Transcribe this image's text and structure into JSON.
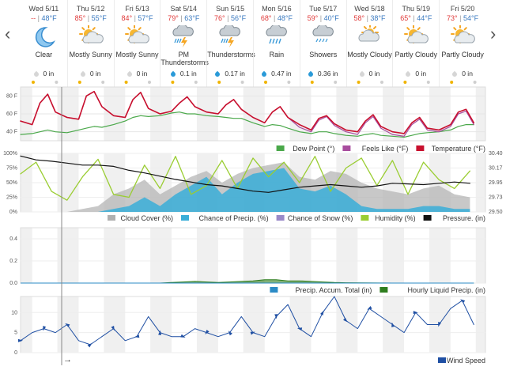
{
  "forecast": {
    "days": [
      {
        "date": "Wed 5/11",
        "hi": "--",
        "lo": "48°F",
        "icon": "moon-icon",
        "condition": "Clear",
        "precip": "0 in",
        "drop": "gray"
      },
      {
        "date": "Thu 5/12",
        "hi": "85°",
        "lo": "55°F",
        "icon": "sun-cloud-icon",
        "condition": "Mostly Sunny",
        "precip": "0 in",
        "drop": "gray"
      },
      {
        "date": "Fri 5/13",
        "hi": "84°",
        "lo": "57°F",
        "icon": "sun-cloud-icon",
        "condition": "Mostly Sunny",
        "precip": "0 in",
        "drop": "gray"
      },
      {
        "date": "Sat 5/14",
        "hi": "79°",
        "lo": "63°F",
        "icon": "thunderstorm-icon",
        "condition": "PM Thunderstorms",
        "precip": "0.1 in",
        "drop": "blue"
      },
      {
        "date": "Sun 5/15",
        "hi": "76°",
        "lo": "56°F",
        "icon": "thunderstorm-icon",
        "condition": "Thunderstorms",
        "precip": "0.17 in",
        "drop": "blue"
      },
      {
        "date": "Mon 5/16",
        "hi": "68°",
        "lo": "48°F",
        "icon": "rain-icon",
        "condition": "Rain",
        "precip": "0.47 in",
        "drop": "blue"
      },
      {
        "date": "Tue 5/17",
        "hi": "59°",
        "lo": "40°F",
        "icon": "showers-icon",
        "condition": "Showers",
        "precip": "0.36 in",
        "drop": "blue"
      },
      {
        "date": "Wed 5/18",
        "hi": "58°",
        "lo": "38°F",
        "icon": "cloud-sun-icon",
        "condition": "Mostly Cloudy",
        "precip": "0 in",
        "drop": "gray"
      },
      {
        "date": "Thu 5/19",
        "hi": "65°",
        "lo": "44°F",
        "icon": "sun-cloud-icon",
        "condition": "Partly Cloudy",
        "precip": "0 in",
        "drop": "gray"
      },
      {
        "date": "Fri 5/20",
        "hi": "73°",
        "lo": "54°F",
        "icon": "sun-cloud-icon",
        "condition": "Partly Cloudy",
        "precip": "0 in",
        "drop": "gray"
      }
    ]
  },
  "nav": {
    "prev": "‹",
    "next": "›"
  },
  "colors": {
    "temperature": "#c8102e",
    "feels_like": "#a84d9e",
    "dew_point": "#4aa84a",
    "cloud_cover": "#b0b0b0",
    "chance_precip": "#3aaed8",
    "chance_snow": "#9a8ac8",
    "humidity": "#9acd32",
    "pressure": "#111111",
    "precip_accum": "#2b8bc6",
    "hourly_precip": "#2e7d1e",
    "wind_speed": "#1f4fa3",
    "night": "#f0f0f0"
  },
  "chart_data": [
    {
      "type": "line",
      "ylim": [
        30,
        90
      ],
      "yticks": [
        "80 F",
        "60 F",
        "40 F"
      ],
      "ytick_values": [
        80,
        60,
        40
      ],
      "x_hours": [
        0,
        6,
        10,
        14,
        18,
        24,
        30,
        34,
        38,
        42,
        48,
        54,
        58,
        62,
        66,
        72,
        78,
        82,
        86,
        90,
        96,
        102,
        106,
        110,
        114,
        120,
        126,
        130,
        134,
        138,
        144,
        150,
        154,
        158,
        162,
        168,
        174,
        178,
        182,
        186,
        192,
        198,
        202,
        206,
        210,
        216,
        222,
        226,
        230,
        234
      ],
      "series": [
        {
          "name": "Temperature (°F)",
          "values": [
            52,
            48,
            72,
            82,
            62,
            56,
            54,
            80,
            85,
            68,
            58,
            56,
            76,
            84,
            66,
            60,
            63,
            72,
            79,
            68,
            62,
            60,
            70,
            76,
            65,
            56,
            50,
            62,
            68,
            56,
            48,
            42,
            55,
            58,
            49,
            42,
            40,
            52,
            59,
            46,
            40,
            38,
            50,
            56,
            44,
            42,
            48,
            62,
            65,
            50
          ]
        },
        {
          "name": "Feels Like (°F)",
          "values": [
            52,
            48,
            72,
            82,
            62,
            56,
            54,
            80,
            85,
            68,
            58,
            56,
            76,
            84,
            66,
            60,
            63,
            72,
            79,
            68,
            62,
            60,
            70,
            76,
            65,
            56,
            50,
            62,
            68,
            56,
            45,
            40,
            53,
            57,
            47,
            40,
            37,
            50,
            57,
            44,
            37,
            35,
            48,
            54,
            42,
            40,
            46,
            60,
            63,
            48
          ]
        },
        {
          "name": "Dew Point (°)",
          "values": [
            37,
            38,
            40,
            42,
            40,
            39,
            42,
            44,
            46,
            45,
            48,
            52,
            56,
            58,
            57,
            58,
            61,
            62,
            60,
            60,
            58,
            57,
            56,
            55,
            55,
            50,
            46,
            48,
            47,
            44,
            40,
            38,
            40,
            40,
            38,
            36,
            35,
            37,
            38,
            36,
            35,
            34,
            36,
            38,
            39,
            40,
            42,
            46,
            48,
            48
          ]
        }
      ]
    },
    {
      "type": "area",
      "ylim_left": [
        0,
        100
      ],
      "yticks_left": [
        "100%",
        "75%",
        "50%",
        "25%",
        "0%"
      ],
      "ylim_right": [
        29.5,
        30.4
      ],
      "yticks_right": [
        "30.40",
        "30.17",
        "29.95",
        "29.73",
        "29.50"
      ],
      "x_hours": [
        0,
        8,
        16,
        24,
        32,
        40,
        48,
        56,
        64,
        72,
        80,
        88,
        96,
        104,
        112,
        120,
        128,
        136,
        144,
        152,
        160,
        168,
        176,
        184,
        192,
        200,
        208,
        216,
        224,
        232
      ],
      "series": [
        {
          "name": "Cloud Cover (%)",
          "values": [
            0,
            0,
            0,
            0,
            5,
            10,
            30,
            40,
            55,
            30,
            45,
            60,
            70,
            50,
            65,
            75,
            80,
            85,
            60,
            55,
            70,
            65,
            50,
            40,
            35,
            30,
            40,
            45,
            30,
            25
          ]
        },
        {
          "name": "Chance of Precip. (%)",
          "values": [
            0,
            0,
            0,
            0,
            0,
            0,
            5,
            10,
            25,
            10,
            30,
            45,
            60,
            30,
            50,
            65,
            70,
            75,
            40,
            35,
            45,
            30,
            10,
            5,
            5,
            5,
            10,
            10,
            5,
            5
          ]
        },
        {
          "name": "Chance of Snow (%)",
          "values": [
            0,
            0,
            0,
            0,
            0,
            0,
            0,
            0,
            0,
            0,
            0,
            0,
            0,
            0,
            0,
            0,
            0,
            0,
            0,
            0,
            0,
            0,
            0,
            0,
            0,
            0,
            0,
            0,
            0,
            0
          ]
        },
        {
          "name": "Humidity (%)",
          "values": [
            65,
            85,
            35,
            20,
            60,
            90,
            30,
            25,
            80,
            40,
            95,
            30,
            45,
            88,
            40,
            92,
            60,
            85,
            50,
            95,
            35,
            75,
            92,
            45,
            88,
            30,
            85,
            55,
            40,
            70
          ]
        },
        {
          "name": "Pressure. (in)",
          "values": [
            30.36,
            30.3,
            30.28,
            30.25,
            30.22,
            30.22,
            30.2,
            30.14,
            30.1,
            30.05,
            30.0,
            29.96,
            29.92,
            29.9,
            29.86,
            29.82,
            29.8,
            29.84,
            29.88,
            29.9,
            29.92,
            29.9,
            29.88,
            29.9,
            29.94,
            29.93,
            29.92,
            29.94,
            29.96,
            29.94
          ]
        }
      ]
    },
    {
      "type": "area",
      "ylim": [
        0,
        0.5
      ],
      "yticks": [
        "0.4",
        "0.2",
        "0.0"
      ],
      "ytick_values": [
        0.4,
        0.2,
        0
      ],
      "x_hours": [
        0,
        24,
        48,
        72,
        78,
        84,
        90,
        96,
        102,
        108,
        114,
        120,
        126,
        132,
        138,
        144,
        150,
        156,
        162,
        168,
        192,
        216,
        234
      ],
      "series": [
        {
          "name": "Precip. Accum. Total (in)",
          "values": [
            0,
            0,
            0,
            0,
            0,
            0,
            0,
            0,
            0,
            0,
            0,
            0,
            0,
            0,
            0,
            0,
            0,
            0,
            0,
            0,
            0,
            0,
            0
          ]
        },
        {
          "name": "Hourly Liquid Precip. (in)",
          "values": [
            0,
            0,
            0,
            0,
            0.005,
            0.01,
            0.015,
            0.01,
            0.005,
            0.01,
            0.015,
            0.02,
            0.03,
            0.03,
            0.02,
            0.02,
            0.015,
            0.01,
            0.005,
            0.003,
            0,
            0,
            0
          ]
        }
      ]
    },
    {
      "type": "line",
      "ylim": [
        0,
        14
      ],
      "yticks": [
        "10",
        "5",
        "0"
      ],
      "ytick_values": [
        10,
        5,
        0
      ],
      "x_hours": [
        0,
        6,
        12,
        18,
        24,
        30,
        36,
        42,
        48,
        54,
        60,
        66,
        72,
        78,
        84,
        90,
        96,
        102,
        108,
        114,
        120,
        126,
        132,
        138,
        144,
        150,
        156,
        162,
        168,
        174,
        180,
        186,
        192,
        198,
        204,
        210,
        216,
        222,
        228,
        234
      ],
      "series": [
        {
          "name": "Wind Speed",
          "values": [
            3,
            5,
            6,
            5,
            7,
            3,
            2,
            4,
            6,
            3,
            4,
            9,
            5,
            4,
            4,
            6,
            5,
            4,
            5,
            9,
            5,
            4,
            9,
            12,
            6,
            4,
            10,
            14,
            8,
            6,
            11,
            9,
            7,
            5,
            10,
            7,
            7,
            11,
            13,
            7
          ]
        }
      ],
      "arrow_label": "→"
    }
  ]
}
